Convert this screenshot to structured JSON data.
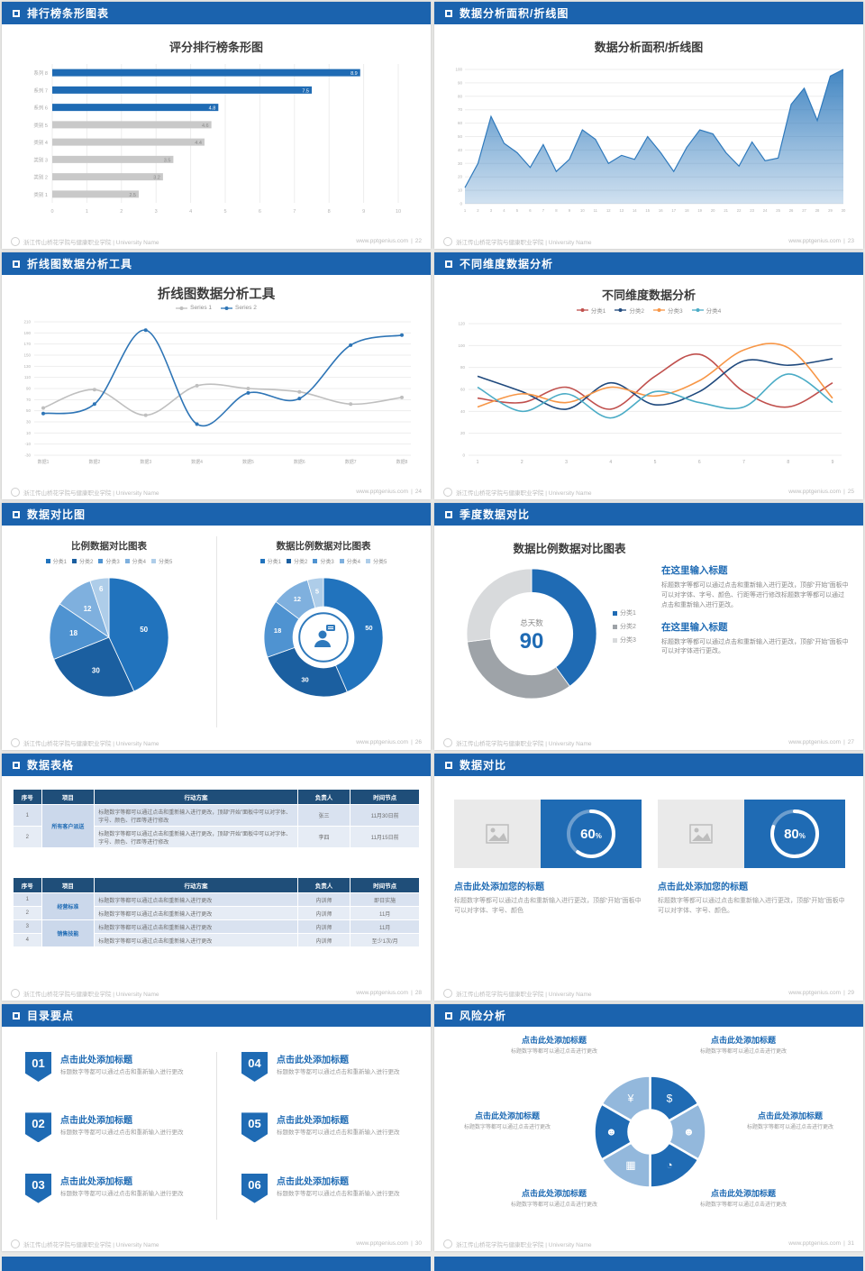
{
  "page": {
    "footer_university": "浙江传山桥花学院与健康职业学院 | University Name",
    "footer_site": "www.pptgenius.com",
    "accent_color": "#1B63AE"
  },
  "slides": [
    {
      "header": "排行榜条形图表",
      "page": "22"
    },
    {
      "header": "数据分析面积/折线图",
      "page": "23"
    },
    {
      "header": "折线图数据分析工具",
      "page": "24"
    },
    {
      "header": "不同维度数据分析",
      "page": "25"
    },
    {
      "header": "数据对比图",
      "page": "26"
    },
    {
      "header": "季度数据对比",
      "page": "27"
    },
    {
      "header": "数据表格",
      "page": "28"
    },
    {
      "header": "数据对比",
      "page": "29"
    },
    {
      "header": "目录要点",
      "page": "30"
    },
    {
      "header": "风险分析",
      "page": "31"
    }
  ],
  "chart_data": [
    {
      "type": "bar",
      "orientation": "horizontal",
      "title": "评分排行榜条形图",
      "categories": [
        "系列 8",
        "系列 7",
        "系列 6",
        "类别 5",
        "类别 4",
        "类别 3",
        "类别 2",
        "类别 1"
      ],
      "values": [
        8.9,
        7.5,
        4.8,
        4.6,
        4.4,
        3.5,
        3.2,
        2.5
      ],
      "xlim": [
        0,
        10
      ],
      "highlight_count": 3,
      "highlight_color": "#1F6BB4",
      "bar_color": "#C9C9C9",
      "grid": true
    },
    {
      "type": "area",
      "title": "数据分析面积/折线图",
      "x": [
        1,
        2,
        3,
        4,
        5,
        6,
        7,
        8,
        9,
        10,
        11,
        12,
        13,
        14,
        15,
        16,
        17,
        18,
        19,
        20,
        21,
        22,
        23,
        24,
        25,
        26,
        27,
        28,
        29,
        30
      ],
      "values": [
        12,
        30,
        65,
        45,
        38,
        27,
        44,
        24,
        33,
        55,
        48,
        30,
        36,
        33,
        50,
        38,
        24,
        42,
        55,
        52,
        38,
        28,
        46,
        32,
        34,
        74,
        86,
        62,
        95,
        100
      ],
      "ylim": [
        0,
        100
      ],
      "ytick_step": 10,
      "color": "#2E79BC",
      "grid": true
    },
    {
      "type": "line",
      "title": "折线图数据分析工具",
      "categories": [
        "数据1",
        "数据2",
        "数据3",
        "数据4",
        "数据5",
        "数据6",
        "数据7",
        "数据8"
      ],
      "ylim": [
        -30,
        210
      ],
      "ytick_step": 20,
      "markers": true,
      "legend_position": "top",
      "series": [
        {
          "name": "Series 1",
          "color": "#BFBFBF",
          "values": [
            55,
            88,
            42,
            95,
            90,
            84,
            62,
            74
          ]
        },
        {
          "name": "Series 2",
          "color": "#2E75B6",
          "values": [
            45,
            62,
            195,
            26,
            82,
            72,
            168,
            186
          ]
        }
      ]
    },
    {
      "type": "line",
      "title": "不同维度数据分析",
      "x": [
        1,
        2,
        3,
        4,
        5,
        6,
        7,
        8,
        9
      ],
      "ylim": [
        0,
        120
      ],
      "ytick_step": 20,
      "markers": false,
      "legend_position": "top",
      "series": [
        {
          "name": "分类1",
          "color": "#C0504D",
          "values": [
            52,
            48,
            62,
            42,
            72,
            92,
            58,
            44,
            66
          ]
        },
        {
          "name": "分类2",
          "color": "#1F497D",
          "values": [
            72,
            58,
            42,
            66,
            46,
            58,
            86,
            82,
            88
          ]
        },
        {
          "name": "分类3",
          "color": "#F79646",
          "values": [
            44,
            56,
            48,
            62,
            54,
            68,
            96,
            98,
            52
          ]
        },
        {
          "name": "分类4",
          "color": "#4BACC6",
          "values": [
            62,
            40,
            56,
            34,
            58,
            48,
            44,
            74,
            48
          ]
        }
      ]
    },
    {
      "type": "pie",
      "title": "比例数据对比图表",
      "labels": [
        "分类1",
        "分类2",
        "分类3",
        "分类4",
        "分类5"
      ],
      "values": [
        50,
        30,
        18,
        12,
        6
      ],
      "colors": [
        "#2173BD",
        "#1B5FA0",
        "#4F93D1",
        "#7FB0DE",
        "#AECDE9"
      ]
    },
    {
      "type": "donut",
      "title": "数据比例数据对比图表",
      "labels": [
        "分类1",
        "分类2",
        "分类3",
        "分类4",
        "分类5"
      ],
      "values": [
        50,
        30,
        18,
        12,
        5
      ],
      "colors": [
        "#2173BD",
        "#1B5FA0",
        "#4F93D1",
        "#7FB0DE",
        "#AECDE9"
      ],
      "center_icon": "person-chat-icon"
    },
    {
      "type": "donut",
      "title": "数据比例数据对比图表",
      "labels": [
        "分类1",
        "分类2",
        "分类3"
      ],
      "values": [
        40,
        33,
        27
      ],
      "colors": [
        "#1F6BB4",
        "#9EA3A8",
        "#D8DADC"
      ],
      "center_label": "总天数",
      "center_value": "90"
    },
    {
      "type": "progress",
      "percent": 60,
      "color": "#FFFFFF",
      "background": "#1F6BB4"
    },
    {
      "type": "progress",
      "percent": 80,
      "color": "#FFFFFF",
      "background": "#1F6BB4"
    }
  ],
  "s27": {
    "sections": [
      {
        "heading": "在这里输入标题",
        "body": "标题数字等都可以通过点击和重新输入进行更改，顶部“开始”面板中可以对字体、字号、颜色、行距等进行修改标题数字等都可以通过点击和重新输入进行更改。"
      },
      {
        "heading": "在这里输入标题",
        "body": "标题数字等都可以通过点击和重新输入进行更改，顶部“开始”面板中可以对字体进行更改。"
      }
    ]
  },
  "s28": {
    "table1": {
      "headers": [
        "序号",
        "项目",
        "行动方案",
        "负责人",
        "时间节点"
      ],
      "group": "所有客户派送",
      "rows": [
        {
          "no": "1",
          "plan": "标题数字等都可以通过点击和重新输入进行更改，顶部“开始”面板中可以对字体、字号、颜色、行距等进行修改",
          "owner": "张三",
          "time": "11月30日前"
        },
        {
          "no": "2",
          "plan": "标题数字等都可以通过点击和重新输入进行更改，顶部“开始”面板中可以对字体、字号、颜色、行距等进行修改",
          "owner": "李四",
          "time": "11月15日前"
        }
      ]
    },
    "table2": {
      "headers": [
        "序号",
        "项目",
        "行动方案",
        "负责人",
        "时间节点"
      ],
      "groups": [
        "经营标准",
        "销售技能"
      ],
      "rows": [
        {
          "no": "1",
          "plan": "标题数字等都可以通过点击和重新输入进行更改",
          "owner": "内训师",
          "time": "即日实施"
        },
        {
          "no": "2",
          "plan": "标题数字等都可以通过点击和重新输入进行更改",
          "owner": "内训师",
          "time": "11月"
        },
        {
          "no": "3",
          "plan": "标题数字等都可以通过点击和重新输入进行更改",
          "owner": "内训师",
          "time": "11月"
        },
        {
          "no": "4",
          "plan": "标题数字等都可以通过点击和重新输入进行更改",
          "owner": "内训师",
          "time": "至少1次/月"
        }
      ]
    }
  },
  "s29": {
    "cards": [
      {
        "percent": "60",
        "title": "点击此处添加您的标题",
        "body": "标题数字等都可以通过点击和重新输入进行更改，顶部“开始”面板中可以对字体、字号、颜色"
      },
      {
        "percent": "80",
        "title": "点击此处添加您的标题",
        "body": "标题数字等都可以通过点击和重新输入进行更改，顶部“开始”面板中可以对字体、字号、颜色。"
      }
    ]
  },
  "s30": {
    "items": [
      {
        "num": "01",
        "title": "点击此处添加标题",
        "body": "标题数字等都可以通过点击和重新输入进行更改"
      },
      {
        "num": "02",
        "title": "点击此处添加标题",
        "body": "标题数字等都可以通过点击和重新输入进行更改"
      },
      {
        "num": "03",
        "title": "点击此处添加标题",
        "body": "标题数字等都可以通过点击和重新输入进行更改"
      },
      {
        "num": "04",
        "title": "点击此处添加标题",
        "body": "标题数字等都可以通过点击和重新输入进行更改"
      },
      {
        "num": "05",
        "title": "点击此处添加标题",
        "body": "标题数字等都可以通过点击和重新输入进行更改"
      },
      {
        "num": "06",
        "title": "点击此处添加标题",
        "body": "标题数字等都可以通过点击和重新输入进行更改"
      }
    ]
  },
  "s31": {
    "labels": [
      {
        "title": "点击此处添加标题",
        "body": "标题数字等都可以通过点击进行更改"
      },
      {
        "title": "点击此处添加标题",
        "body": "标题数字等都可以通过点击进行更改"
      },
      {
        "title": "点击此处添加标题",
        "body": "标题数字等都可以通过点击进行更改"
      },
      {
        "title": "点击此处添加标题",
        "body": "标题数字等都可以通过点击进行更改"
      },
      {
        "title": "点击此处添加标题",
        "body": "标题数字等都可以通过点击进行更改"
      },
      {
        "title": "点击此处添加标题",
        "body": "标题数字等都可以通过点击进行更改"
      }
    ],
    "icons": [
      "coins-icon",
      "people-icon",
      "pie-chart-icon",
      "calculator-icon",
      "people-icon",
      "yen-icon"
    ],
    "wheel_colors": [
      "#1F6BB4",
      "#93B8DC"
    ]
  },
  "icon_glyphs": {
    "yen-icon": "¥",
    "coins-icon": "$",
    "people-icon": "☻",
    "pie-chart-icon": "◔",
    "calculator-icon": "▦"
  }
}
